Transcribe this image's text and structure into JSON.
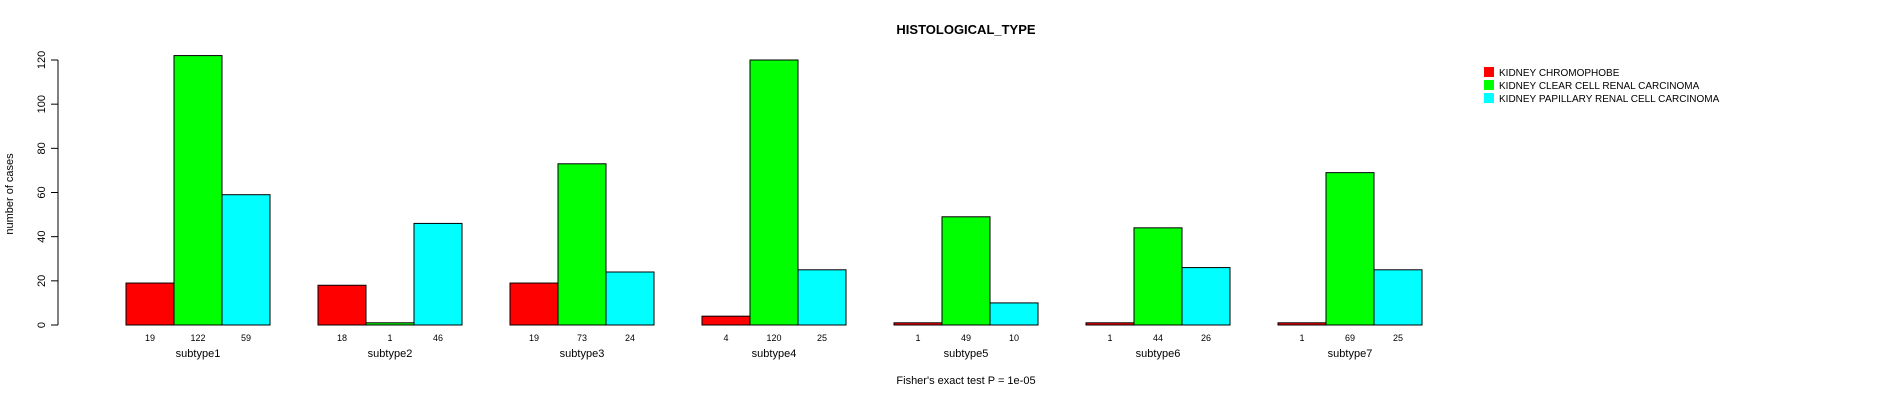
{
  "chart_data": {
    "type": "bar",
    "title": "HISTOLOGICAL_TYPE",
    "xlabel": "Fisher's exact test P = 1e-05",
    "ylabel": "number of cases",
    "ylim": [
      0,
      120
    ],
    "yticks": [
      0,
      20,
      40,
      60,
      80,
      100,
      120
    ],
    "categories": [
      "subtype1",
      "subtype2",
      "subtype3",
      "subtype4",
      "subtype5",
      "subtype6",
      "subtype7"
    ],
    "series": [
      {
        "name": "KIDNEY CHROMOPHOBE",
        "color": "#ff0000",
        "values": [
          19,
          18,
          19,
          4,
          1,
          1,
          1
        ]
      },
      {
        "name": "KIDNEY CLEAR CELL RENAL CARCINOMA",
        "color": "#00ff00",
        "values": [
          122,
          1,
          73,
          120,
          49,
          44,
          69
        ]
      },
      {
        "name": "KIDNEY PAPILLARY RENAL CELL CARCINOMA",
        "color": "#00ffff",
        "values": [
          59,
          46,
          24,
          25,
          10,
          26,
          25
        ]
      }
    ],
    "legend_position": "top-right",
    "grid": false
  }
}
